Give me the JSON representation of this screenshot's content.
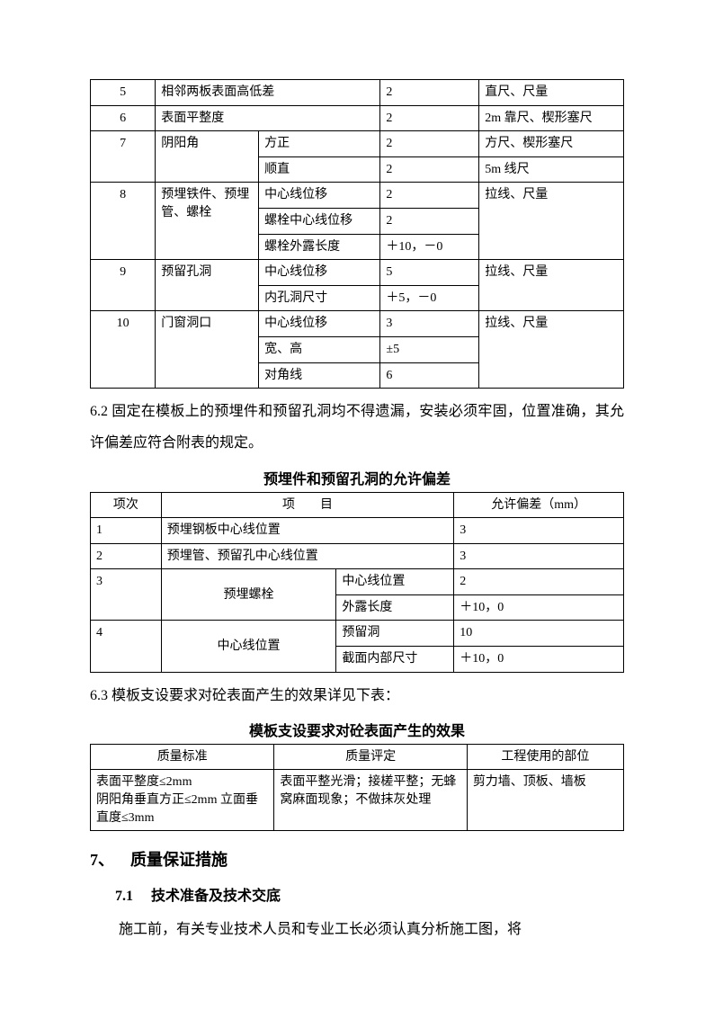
{
  "table1": {
    "rows": [
      {
        "no": "5",
        "col2": "相邻两板表面高低差",
        "col3": null,
        "col4": "2",
        "col5": "直尺、尺量"
      },
      {
        "no": "6",
        "col2": "表面平整度",
        "col3": null,
        "col4": "2",
        "col5": "2m 靠尺、楔形塞尺"
      },
      {
        "no": "7",
        "col2": "阴阳角",
        "rowspan2": 2,
        "col3": "方正",
        "col4": "2",
        "col5": "方尺、楔形塞尺"
      },
      {
        "col3": "顺直",
        "col4": "2",
        "col5": "5m 线尺"
      },
      {
        "no": "8",
        "col2": "预埋铁件、预埋管、螺栓",
        "rowspan2": 3,
        "col3": "中心线位移",
        "col4": "2",
        "col5": "拉线、尺量",
        "rowspan5": 3
      },
      {
        "col3": "螺栓中心线位移",
        "col4": "2"
      },
      {
        "col3": "螺栓外露长度",
        "col4": "＋10，－0"
      },
      {
        "no": "9",
        "col2": "预留孔洞",
        "rowspan2": 2,
        "col3": "中心线位移",
        "col4": "5",
        "col5": "拉线、尺量",
        "rowspan5": 2
      },
      {
        "col3": "内孔洞尺寸",
        "col4": "＋5，－0"
      },
      {
        "no": "10",
        "col2": "门窗洞口",
        "rowspan2": 3,
        "col3": "中心线位移",
        "col4": "3",
        "col5": "拉线、尺量",
        "rowspan5": 3
      },
      {
        "col3": "宽、高",
        "col4": "±5"
      },
      {
        "col3": "对角线",
        "col4": "6"
      }
    ]
  },
  "para_6_2": "6.2 固定在模板上的预埋件和预留孔洞均不得遗漏，安装必须牢固，位置准确，其允许偏差应符合附表的规定。",
  "caption2": "预埋件和预留孔洞的允许偏差",
  "table2": {
    "headers": [
      "项次",
      "项　　目",
      "允许偏差（mm）"
    ],
    "rows": [
      {
        "no": "1",
        "item12": "预埋钢板中心线位置",
        "val": "3"
      },
      {
        "no": "2",
        "item12": "预埋管、预留孔中心线位置",
        "val": "3"
      },
      {
        "no": "3",
        "rowspan1": 2,
        "item_left": "预埋螺栓",
        "rowspanL": 2,
        "item_right": "中心线位置",
        "val": "2"
      },
      {
        "item_right": "外露长度",
        "val": "＋10，0"
      },
      {
        "no": "4",
        "rowspan1": 2,
        "item_left": "中心线位置",
        "rowspanL": 2,
        "item_right": "预留洞",
        "val": "10"
      },
      {
        "item_right": "截面内部尺寸",
        "val": "＋10，0"
      }
    ]
  },
  "para_6_3": "6.3 模板支设要求对砼表面产生的效果详见下表：",
  "caption3": "模板支设要求对砼表面产生的效果",
  "table3": {
    "headers": [
      "质量标准",
      "质量评定",
      "工程使用的部位"
    ],
    "rows": [
      {
        "c1": "表面平整度≤2mm\n阴阳角垂直方正≤2mm 立面垂直度≤3mm",
        "c2": "表面平整光滑；接槎平整；无蜂窝麻面现象；不做抹灰处理",
        "c3": "剪力墙、顶板、墙板"
      }
    ]
  },
  "heading7": "7、 质量保证措施",
  "heading7_1": "7.1  技术准备及技术交底",
  "body_text": "施工前，有关专业技术人员和专业工长必须认真分析施工图，将"
}
